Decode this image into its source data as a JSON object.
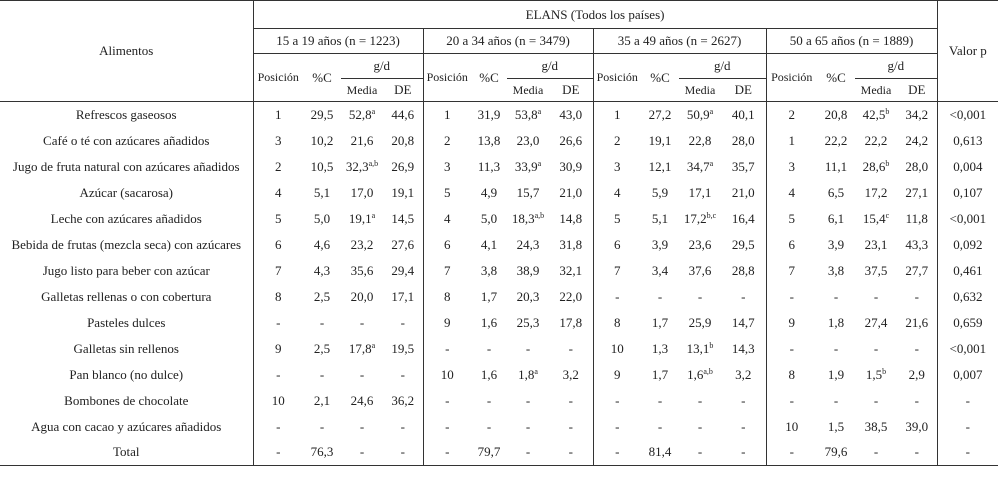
{
  "table": {
    "col_food": "Alimentos",
    "group_title": "ELANS (Todos los países)",
    "col_pvalue": "Valor p",
    "age_groups": [
      "15 a 19 años (n = 1223)",
      "20 a 34 años (n = 3479)",
      "35 a 49 años (n = 2627)",
      "50 a 65 años (n = 1889)"
    ],
    "sub_pos": "Posición",
    "sub_pct": "%C",
    "sub_gd": "g/d",
    "sub_mean": "Media",
    "sub_sd": "DE",
    "rows": [
      {
        "food": "Refrescos gaseosos",
        "g": [
          {
            "pos": "1",
            "pct": "29,5",
            "mean": "52,8",
            "sup": "a",
            "sd": "44,6"
          },
          {
            "pos": "1",
            "pct": "31,9",
            "mean": "53,8",
            "sup": "a",
            "sd": "43,0"
          },
          {
            "pos": "1",
            "pct": "27,2",
            "mean": "50,9",
            "sup": "a",
            "sd": "40,1"
          },
          {
            "pos": "2",
            "pct": "20,8",
            "mean": "42,5",
            "sup": "b",
            "sd": "34,2"
          }
        ],
        "p": "<0,001"
      },
      {
        "food": "Café o té con azúcares añadidos",
        "g": [
          {
            "pos": "3",
            "pct": "10,2",
            "mean": "21,6",
            "sup": "",
            "sd": "20,8"
          },
          {
            "pos": "2",
            "pct": "13,8",
            "mean": "23,0",
            "sup": "",
            "sd": "26,6"
          },
          {
            "pos": "2",
            "pct": "19,1",
            "mean": "22,8",
            "sup": "",
            "sd": "28,0"
          },
          {
            "pos": "1",
            "pct": "22,2",
            "mean": "22,2",
            "sup": "",
            "sd": "24,2"
          }
        ],
        "p": "0,613"
      },
      {
        "food": "Jugo de fruta natural con azúcares añadidos",
        "g": [
          {
            "pos": "2",
            "pct": "10,5",
            "mean": "32,3",
            "sup": "a,b",
            "sd": "26,9"
          },
          {
            "pos": "3",
            "pct": "11,3",
            "mean": "33,9",
            "sup": "a",
            "sd": "30,9"
          },
          {
            "pos": "3",
            "pct": "12,1",
            "mean": "34,7",
            "sup": "a",
            "sd": "35,7"
          },
          {
            "pos": "3",
            "pct": "11,1",
            "mean": "28,6",
            "sup": "b",
            "sd": "28,0"
          }
        ],
        "p": "0,004"
      },
      {
        "food": "Azúcar (sacarosa)",
        "g": [
          {
            "pos": "4",
            "pct": "5,1",
            "mean": "17,0",
            "sup": "",
            "sd": "19,1"
          },
          {
            "pos": "5",
            "pct": "4,9",
            "mean": "15,7",
            "sup": "",
            "sd": "21,0"
          },
          {
            "pos": "4",
            "pct": "5,9",
            "mean": "17,1",
            "sup": "",
            "sd": "21,0"
          },
          {
            "pos": "4",
            "pct": "6,5",
            "mean": "17,2",
            "sup": "",
            "sd": "27,1"
          }
        ],
        "p": "0,107"
      },
      {
        "food": "Leche con azúcares añadidos",
        "g": [
          {
            "pos": "5",
            "pct": "5,0",
            "mean": "19,1",
            "sup": "a",
            "sd": "14,5"
          },
          {
            "pos": "4",
            "pct": "5,0",
            "mean": "18,3",
            "sup": "a,b",
            "sd": "14,8"
          },
          {
            "pos": "5",
            "pct": "5,1",
            "mean": "17,2",
            "sup": "b,c",
            "sd": "16,4"
          },
          {
            "pos": "5",
            "pct": "6,1",
            "mean": "15,4",
            "sup": "c",
            "sd": "11,8"
          }
        ],
        "p": "<0,001"
      },
      {
        "food": "Bebida de frutas (mezcla seca) con azúcares",
        "g": [
          {
            "pos": "6",
            "pct": "4,6",
            "mean": "23,2",
            "sup": "",
            "sd": "27,6"
          },
          {
            "pos": "6",
            "pct": "4,1",
            "mean": "24,3",
            "sup": "",
            "sd": "31,8"
          },
          {
            "pos": "6",
            "pct": "3,9",
            "mean": "23,6",
            "sup": "",
            "sd": "29,5"
          },
          {
            "pos": "6",
            "pct": "3,9",
            "mean": "23,1",
            "sup": "",
            "sd": "43,3"
          }
        ],
        "p": "0,092"
      },
      {
        "food": "Jugo listo para beber con azúcar",
        "g": [
          {
            "pos": "7",
            "pct": "4,3",
            "mean": "35,6",
            "sup": "",
            "sd": "29,4"
          },
          {
            "pos": "7",
            "pct": "3,8",
            "mean": "38,9",
            "sup": "",
            "sd": "32,1"
          },
          {
            "pos": "7",
            "pct": "3,4",
            "mean": "37,6",
            "sup": "",
            "sd": "28,8"
          },
          {
            "pos": "7",
            "pct": "3,8",
            "mean": "37,5",
            "sup": "",
            "sd": "27,7"
          }
        ],
        "p": "0,461"
      },
      {
        "food": "Galletas rellenas o con cobertura",
        "g": [
          {
            "pos": "8",
            "pct": "2,5",
            "mean": "20,0",
            "sup": "",
            "sd": "17,1"
          },
          {
            "pos": "8",
            "pct": "1,7",
            "mean": "20,3",
            "sup": "",
            "sd": "22,0"
          },
          {
            "pos": "-",
            "pct": "-",
            "mean": "-",
            "sup": "",
            "sd": "-"
          },
          {
            "pos": "-",
            "pct": "-",
            "mean": "-",
            "sup": "",
            "sd": "-"
          }
        ],
        "p": "0,632"
      },
      {
        "food": "Pasteles dulces",
        "g": [
          {
            "pos": "-",
            "pct": "-",
            "mean": "-",
            "sup": "",
            "sd": "-"
          },
          {
            "pos": "9",
            "pct": "1,6",
            "mean": "25,3",
            "sup": "",
            "sd": "17,8"
          },
          {
            "pos": "8",
            "pct": "1,7",
            "mean": "25,9",
            "sup": "",
            "sd": "14,7"
          },
          {
            "pos": "9",
            "pct": "1,8",
            "mean": "27,4",
            "sup": "",
            "sd": "21,6"
          }
        ],
        "p": "0,659"
      },
      {
        "food": "Galletas sin rellenos",
        "g": [
          {
            "pos": "9",
            "pct": "2,5",
            "mean": "17,8",
            "sup": "a",
            "sd": "19,5"
          },
          {
            "pos": "-",
            "pct": "-",
            "mean": "-",
            "sup": "",
            "sd": "-"
          },
          {
            "pos": "10",
            "pct": "1,3",
            "mean": "13,1",
            "sup": "b",
            "sd": "14,3"
          },
          {
            "pos": "-",
            "pct": "-",
            "mean": "-",
            "sup": "",
            "sd": "-"
          }
        ],
        "p": "<0,001"
      },
      {
        "food": "Pan blanco (no dulce)",
        "g": [
          {
            "pos": "-",
            "pct": "-",
            "mean": "-",
            "sup": "",
            "sd": "-"
          },
          {
            "pos": "10",
            "pct": "1,6",
            "mean": "1,8",
            "sup": "a",
            "sd": "3,2"
          },
          {
            "pos": "9",
            "pct": "1,7",
            "mean": "1,6",
            "sup": "a,b",
            "sd": "3,2"
          },
          {
            "pos": "8",
            "pct": "1,9",
            "mean": "1,5",
            "sup": "b",
            "sd": "2,9"
          }
        ],
        "p": "0,007"
      },
      {
        "food": "Bombones de chocolate",
        "g": [
          {
            "pos": "10",
            "pct": "2,1",
            "mean": "24,6",
            "sup": "",
            "sd": "36,2"
          },
          {
            "pos": "-",
            "pct": "-",
            "mean": "-",
            "sup": "",
            "sd": "-"
          },
          {
            "pos": "-",
            "pct": "-",
            "mean": "-",
            "sup": "",
            "sd": "-"
          },
          {
            "pos": "-",
            "pct": "-",
            "mean": "-",
            "sup": "",
            "sd": "-"
          }
        ],
        "p": "-"
      },
      {
        "food": "Agua con cacao y azúcares añadidos",
        "g": [
          {
            "pos": "-",
            "pct": "-",
            "mean": "-",
            "sup": "",
            "sd": "-"
          },
          {
            "pos": "-",
            "pct": "-",
            "mean": "-",
            "sup": "",
            "sd": "-"
          },
          {
            "pos": "-",
            "pct": "-",
            "mean": "-",
            "sup": "",
            "sd": "-"
          },
          {
            "pos": "10",
            "pct": "1,5",
            "mean": "38,5",
            "sup": "",
            "sd": "39,0"
          }
        ],
        "p": "-"
      },
      {
        "food": "Total",
        "g": [
          {
            "pos": "-",
            "pct": "76,3",
            "mean": "-",
            "sup": "",
            "sd": "-"
          },
          {
            "pos": "-",
            "pct": "79,7",
            "mean": "-",
            "sup": "",
            "sd": "-"
          },
          {
            "pos": "-",
            "pct": "81,4",
            "mean": "-",
            "sup": "",
            "sd": "-"
          },
          {
            "pos": "-",
            "pct": "79,6",
            "mean": "-",
            "sup": "",
            "sd": "-"
          }
        ],
        "p": "-"
      }
    ]
  }
}
